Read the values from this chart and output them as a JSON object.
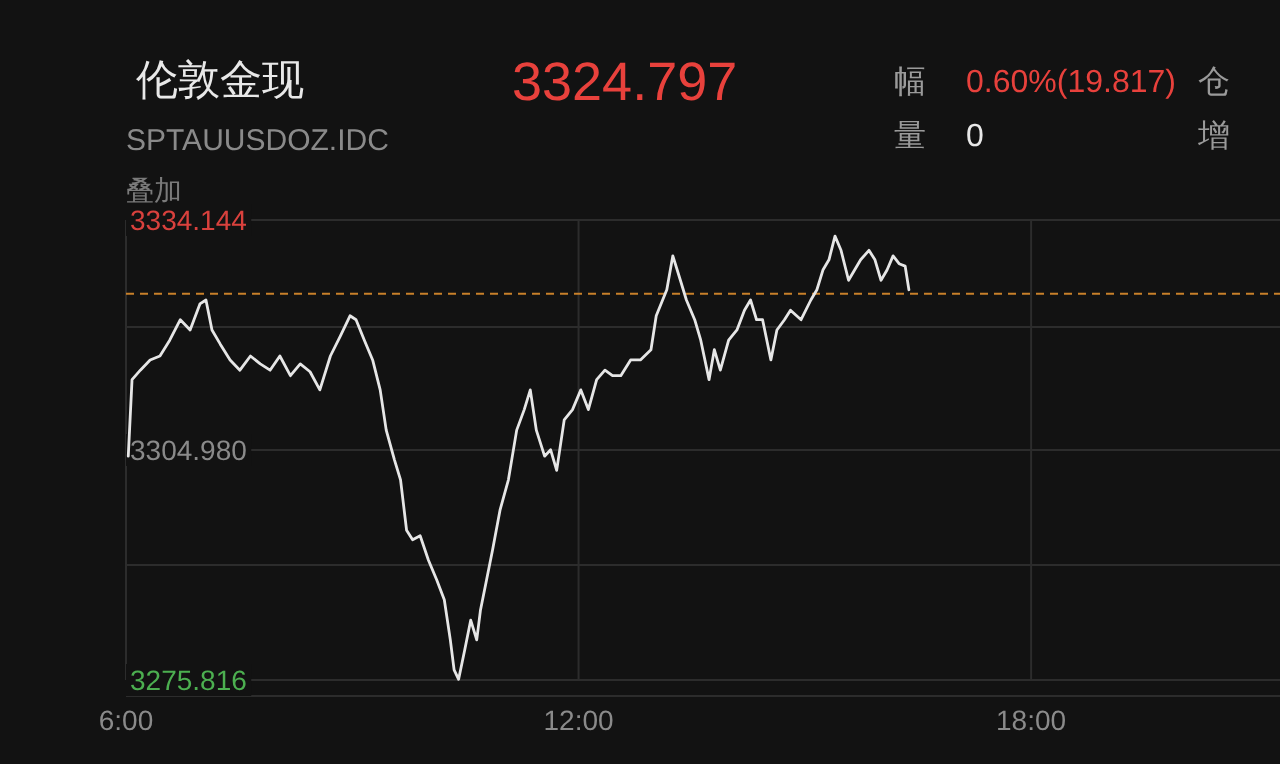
{
  "chart_data": {
    "type": "line",
    "title": "伦敦金现",
    "subtitle": "SPTAUUSDOZ.IDC",
    "annotations": [
      "3324.797",
      "幅",
      "0.60%(19.817)",
      "仓",
      "量",
      "0",
      "增",
      "叠加"
    ],
    "x": [
      6.03,
      6.08,
      6.19,
      6.32,
      6.45,
      6.58,
      6.72,
      6.85,
      6.98,
      7.06,
      7.14,
      7.25,
      7.38,
      7.51,
      7.65,
      7.78,
      7.91,
      8.04,
      8.18,
      8.31,
      8.44,
      8.57,
      8.71,
      8.84,
      8.97,
      9.05,
      9.16,
      9.27,
      9.37,
      9.45,
      9.56,
      9.64,
      9.72,
      9.8,
      9.9,
      10.01,
      10.12,
      10.22,
      10.3,
      10.35,
      10.41,
      10.49,
      10.57,
      10.65,
      10.7,
      10.78,
      10.86,
      10.96,
      11.07,
      11.18,
      11.28,
      11.36,
      11.44,
      11.55,
      11.63,
      11.71,
      11.81,
      11.92,
      12.03,
      12.13,
      12.24,
      12.35,
      12.45,
      12.56,
      12.69,
      12.82,
      12.96,
      13.03,
      13.17,
      13.25,
      13.35,
      13.43,
      13.54,
      13.62,
      13.73,
      13.8,
      13.88,
      13.99,
      14.1,
      14.2,
      14.28,
      14.36,
      14.44,
      14.55,
      14.63,
      14.73,
      14.81,
      14.95,
      15.08,
      15.16,
      15.24,
      15.32,
      15.4,
      15.48,
      15.58,
      15.66,
      15.74,
      15.85,
      15.93,
      16.01,
      16.09,
      16.17,
      16.25,
      16.33,
      16.38
    ],
    "values": [
      3304.2,
      3313.9,
      3315.1,
      3316.4,
      3316.9,
      3318.9,
      3321.5,
      3320.2,
      3323.5,
      3324.0,
      3320.2,
      3318.4,
      3316.4,
      3315.1,
      3316.9,
      3315.9,
      3315.1,
      3316.9,
      3314.4,
      3315.9,
      3314.9,
      3312.6,
      3316.9,
      3319.4,
      3322.0,
      3321.5,
      3318.9,
      3316.4,
      3312.6,
      3307.5,
      3303.7,
      3301.2,
      3294.8,
      3293.6,
      3294.1,
      3291.0,
      3288.5,
      3286.0,
      3280.9,
      3277.1,
      3275.9,
      3279.6,
      3283.4,
      3280.9,
      3284.7,
      3288.5,
      3292.3,
      3297.4,
      3301.2,
      3307.5,
      3310.1,
      3312.6,
      3307.5,
      3304.2,
      3305.0,
      3302.4,
      3308.8,
      3310.1,
      3312.6,
      3310.1,
      3313.9,
      3315.1,
      3314.4,
      3314.4,
      3316.4,
      3316.4,
      3317.7,
      3322.0,
      3325.3,
      3329.6,
      3326.5,
      3324.0,
      3321.5,
      3318.9,
      3313.9,
      3317.7,
      3315.1,
      3318.9,
      3320.2,
      3322.7,
      3324.0,
      3321.5,
      3321.5,
      3316.4,
      3320.2,
      3321.5,
      3322.7,
      3321.5,
      3324.0,
      3325.3,
      3327.8,
      3329.1,
      3332.1,
      3330.3,
      3326.5,
      3327.8,
      3329.1,
      3330.3,
      3329.1,
      3326.5,
      3327.8,
      3329.6,
      3328.6,
      3328.3,
      3325.3
    ],
    "color": "#e6e6e6",
    "xlim": [
      6,
      21.3
    ],
    "ylim": [
      3275.816,
      3334.144
    ],
    "xticks": [
      {
        "value": 6,
        "label": "6:00"
      },
      {
        "value": 12,
        "label": "12:00"
      },
      {
        "value": 18,
        "label": "18:00"
      }
    ],
    "yticks": [
      3334.144,
      {
        "value": 3320.562,
        "label": null
      },
      {
        "value": 3304.98,
        "label": "3304.980"
      },
      {
        "value": 3290.398,
        "label": null
      },
      3275.816
    ],
    "ref_lines": [
      {
        "axis": "y",
        "value": 3324.797,
        "color": "#c8802a",
        "line_style": "dashed"
      }
    ],
    "grid": true
  }
}
